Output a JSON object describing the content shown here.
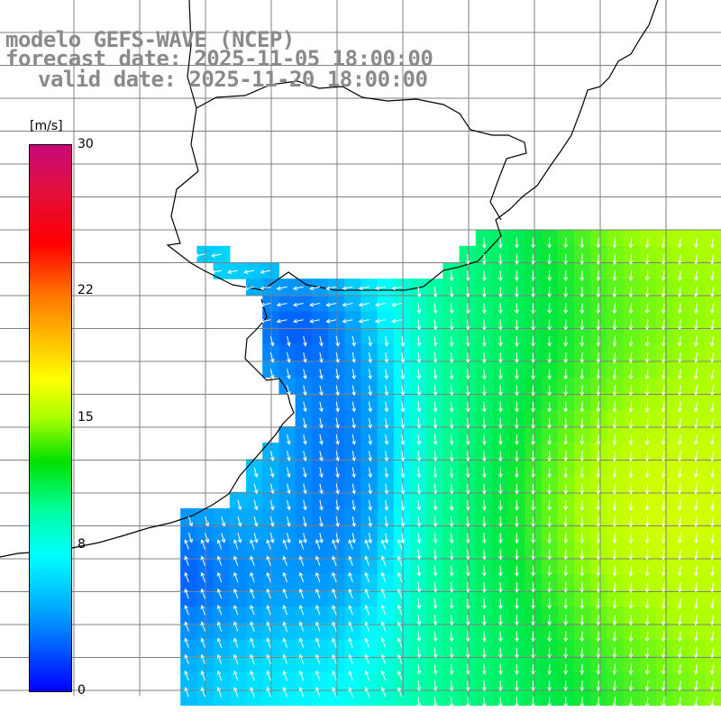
{
  "title": {
    "line1": "modelo GEFS-WAVE (NCEP)",
    "line2": "forecast date: 2025-11-05 18:00:00",
    "line3": "valid date: 2025-11-20 18:00:00"
  },
  "colorbar": {
    "unit": "[m/s]",
    "ticks": [
      {
        "label": "30",
        "value": 30
      },
      {
        "label": "22",
        "value": 22
      },
      {
        "label": "15",
        "value": 15
      },
      {
        "label": "8",
        "value": 8
      },
      {
        "label": "0",
        "value": 0
      }
    ],
    "range": [
      0,
      30
    ]
  },
  "colors": {
    "land": "#ffffff",
    "coastline": "#000000",
    "grid": "#808080",
    "arrows": "#ffffff",
    "labels_gray": "#8a8a8a"
  }
}
